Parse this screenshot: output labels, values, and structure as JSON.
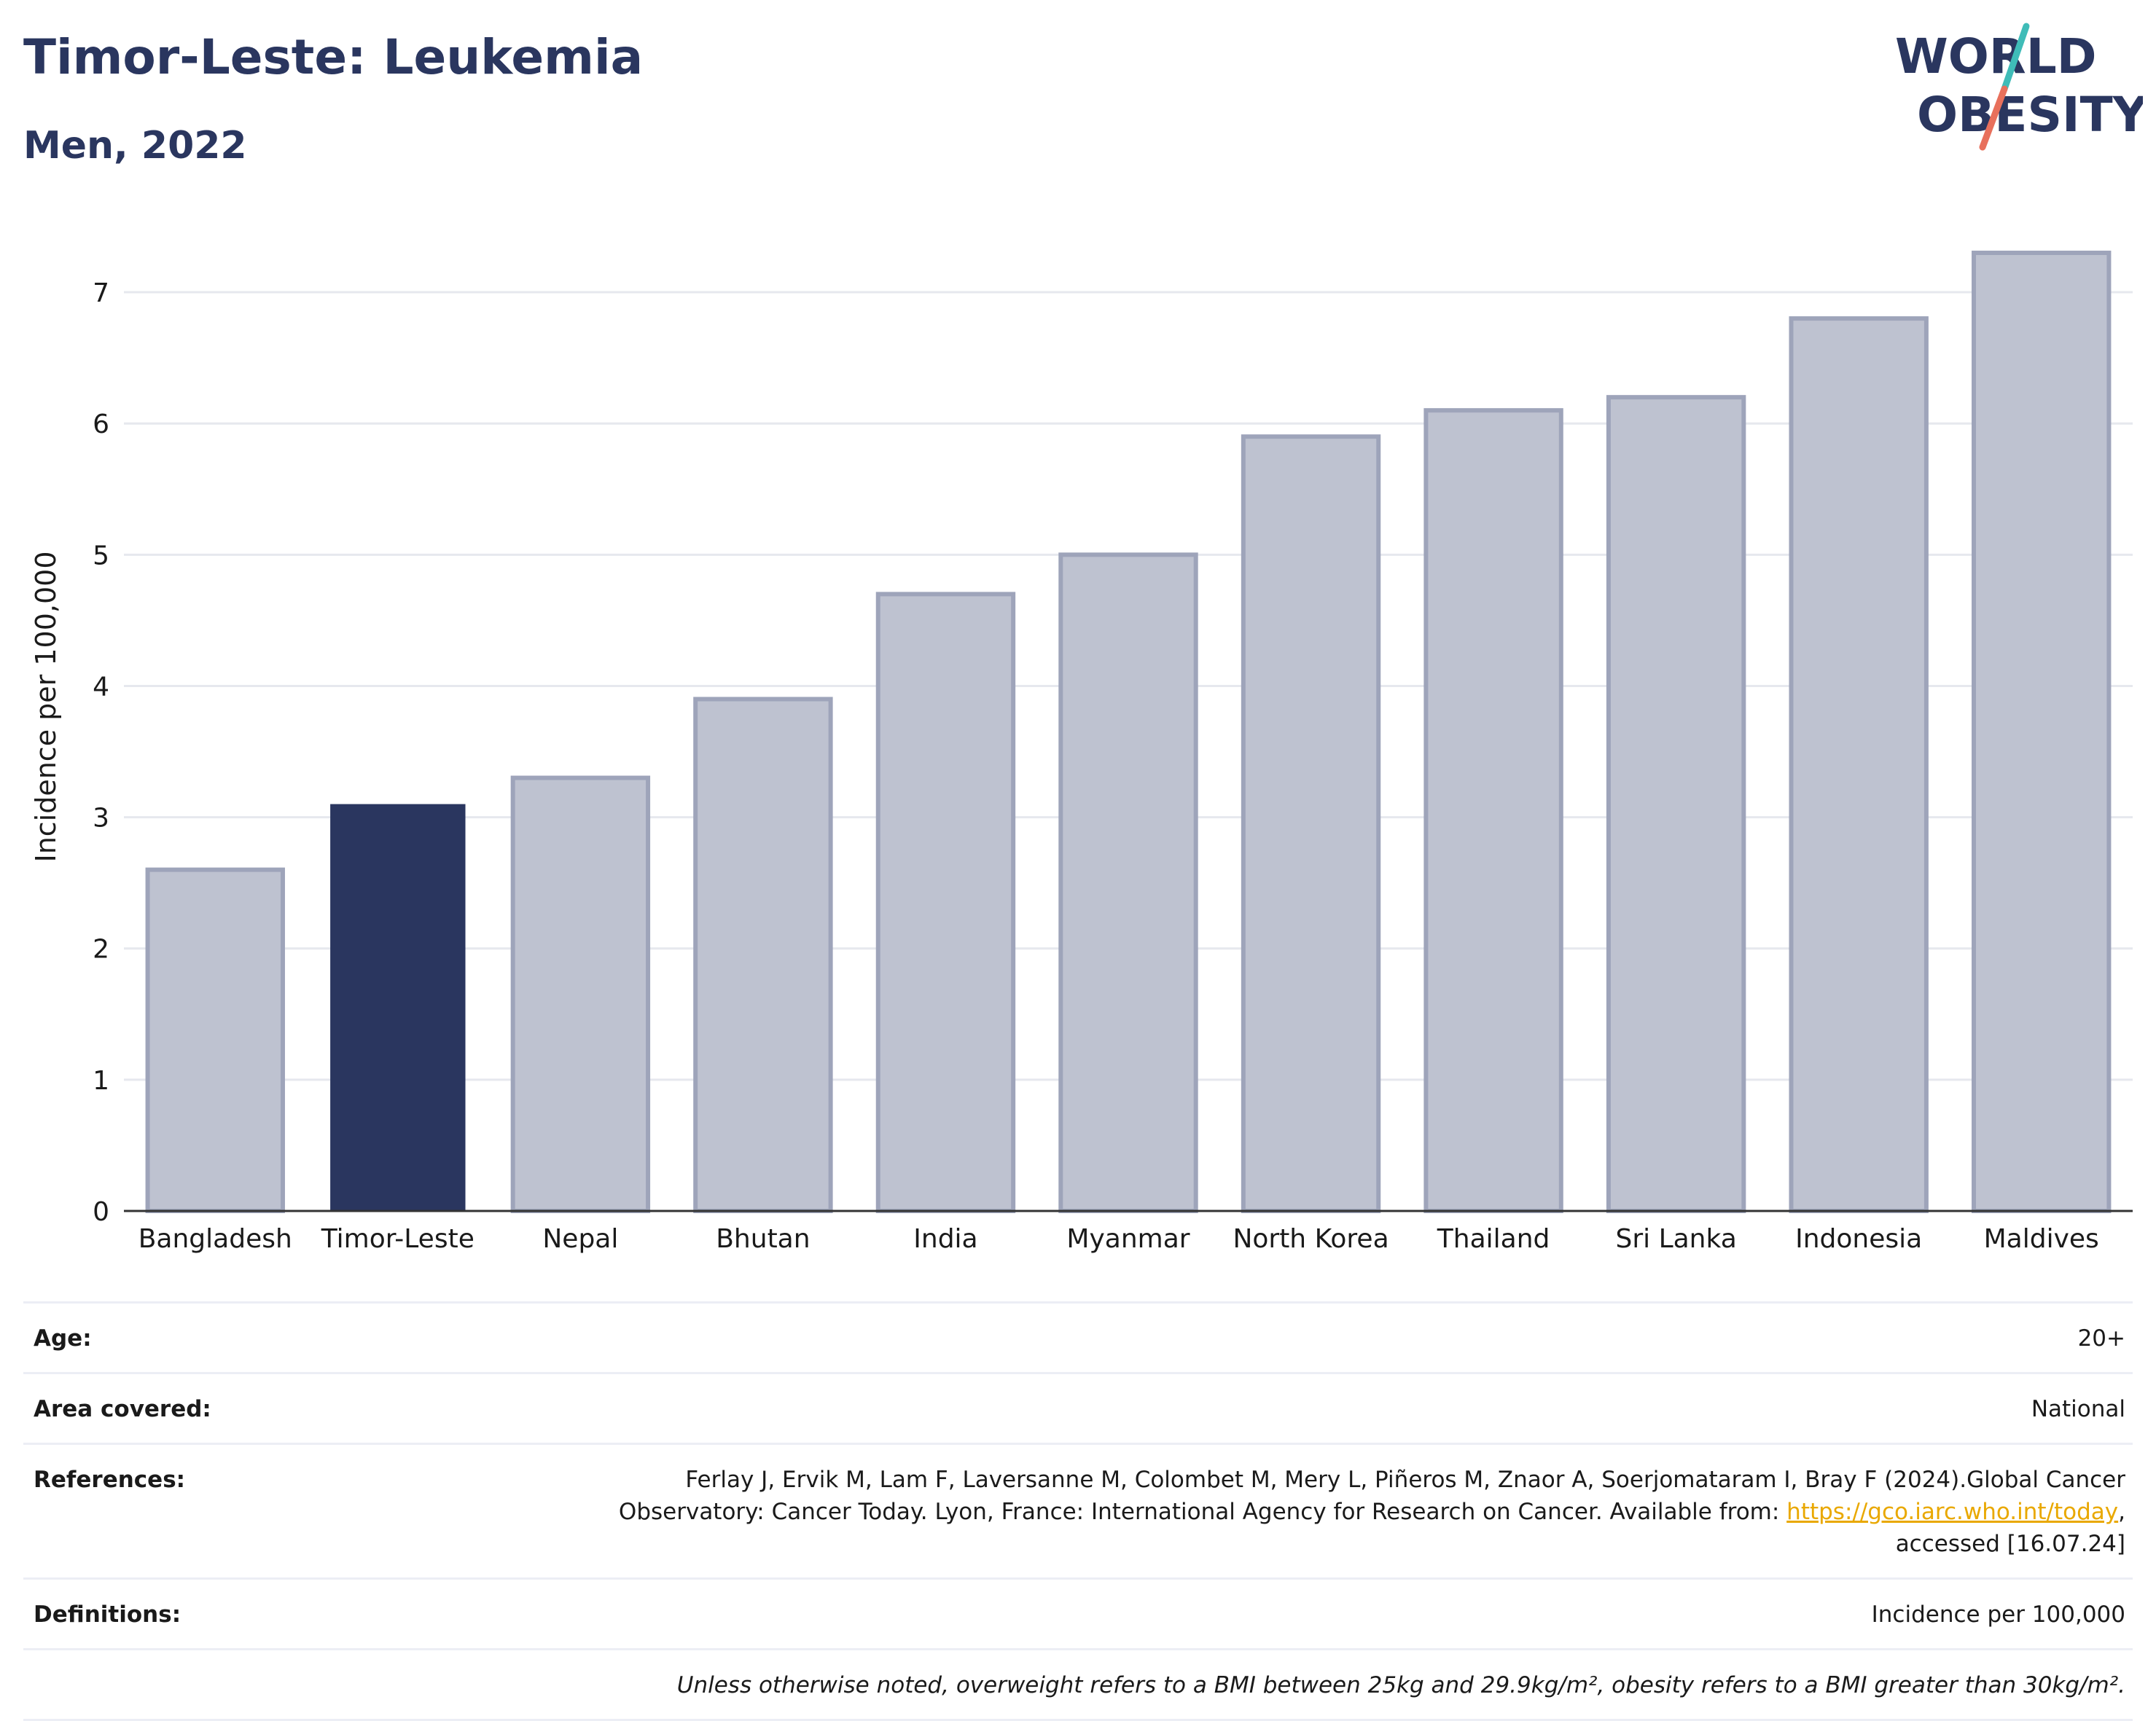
{
  "header": {
    "title": "Timor-Leste: Leukemia",
    "subtitle": "Men, 2022"
  },
  "logo": {
    "line1": "WORLD",
    "line2": "OBESITY",
    "stroke_top": "#3fbcb8",
    "stroke_bottom": "#e8705c",
    "text_color": "#2a365f"
  },
  "chart_data": {
    "type": "bar",
    "title": "Timor-Leste: Leukemia",
    "subtitle": "Men, 2022",
    "xlabel": "",
    "ylabel": "Incidence per 100,000",
    "ylim": [
      0,
      7.45
    ],
    "yticks": [
      0,
      1,
      2,
      3,
      4,
      5,
      6,
      7
    ],
    "grid": true,
    "highlight": "Timor-Leste",
    "highlight_color": "#2a365f",
    "bar_color": "#bec2d0",
    "categories": [
      "Bangladesh",
      "Timor-Leste",
      "Nepal",
      "Bhutan",
      "India",
      "Myanmar",
      "North Korea",
      "Thailand",
      "Sri Lanka",
      "Indonesia",
      "Maldives"
    ],
    "values": [
      2.6,
      3.1,
      3.3,
      3.9,
      4.7,
      5.0,
      5.9,
      6.1,
      6.2,
      6.8,
      7.3
    ]
  },
  "info": {
    "age_label": "Age:",
    "age_value": "20+",
    "area_label": "Area covered:",
    "area_value": "National",
    "refs_label": "References:",
    "refs_line1": "Ferlay J, Ervik M, Lam F, Laversanne M, Colombet M, Mery L, Piñeros M, Znaor A, Soerjomataram I, Bray F (2024).Global Cancer",
    "refs_line2_pre": "Observatory: Cancer Today. Lyon, France: International Agency for Research on Cancer. Available from: ",
    "refs_link": "https://gco.iarc.who.int/today",
    "refs_line2_post": ",",
    "refs_line3": "accessed [16.07.24]",
    "defs_label": "Definitions:",
    "defs_value": "Incidence per 100,000",
    "note": "Unless otherwise noted, overweight refers to a BMI between 25kg and 29.9kg/m², obesity refers to a BMI greater than 30kg/m²."
  }
}
